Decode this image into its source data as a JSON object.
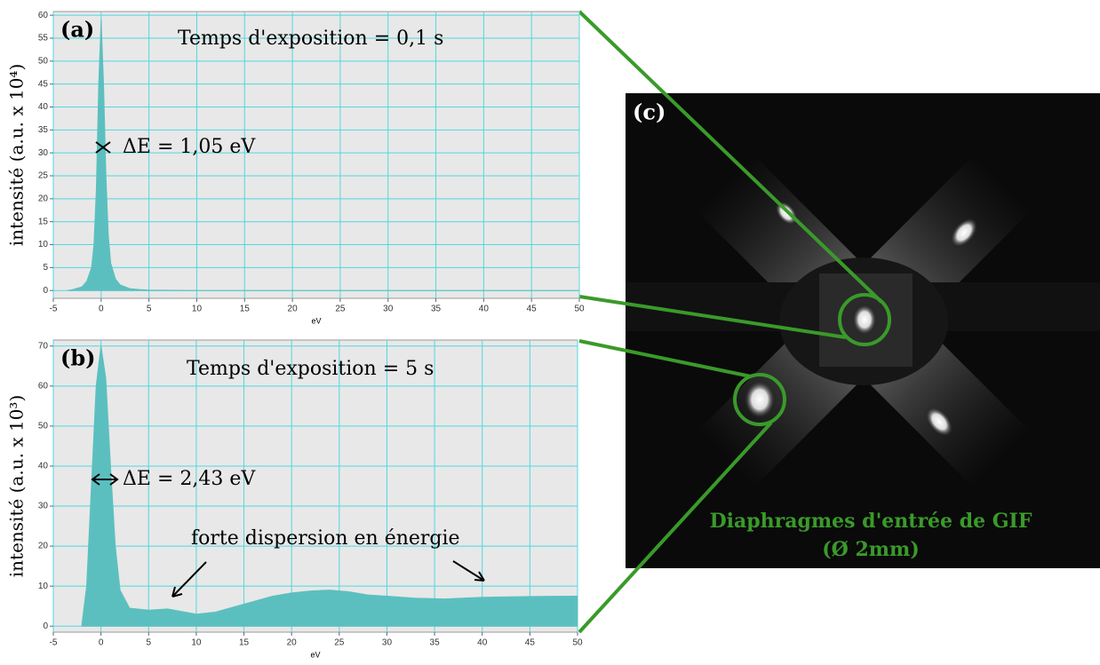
{
  "chart_data": [
    {
      "type": "area",
      "label": "(a)",
      "ylabel": "intensité (a.u. x 10⁴)",
      "xlabel": "eV",
      "annotations": [
        "Temps d'exposition = 0,1 s",
        "ΔE = 1,05 eV"
      ],
      "color": "#5cbfbf",
      "grid": true,
      "xlim": [
        -5,
        50
      ],
      "xticks": [
        -5,
        0,
        5,
        10,
        15,
        20,
        25,
        30,
        35,
        40,
        45,
        50
      ],
      "ylim": [
        -1.7,
        60.8
      ],
      "yticks": [
        0,
        5,
        10,
        15,
        20,
        25,
        30,
        35,
        40,
        45,
        50,
        55,
        60
      ],
      "x": [
        -3.5,
        -3,
        -2,
        -1.5,
        -1,
        -0.75,
        -0.5,
        -0.25,
        0,
        0.25,
        0.5,
        0.75,
        1,
        1.5,
        2,
        3,
        4,
        5,
        10,
        20,
        30,
        40,
        50
      ],
      "values": [
        0,
        0.2,
        0.8,
        2,
        5,
        10,
        22,
        45,
        59,
        45,
        25,
        12,
        6,
        2.5,
        1.2,
        0.4,
        0.2,
        0.1,
        0,
        0,
        0,
        0,
        0
      ]
    },
    {
      "type": "area",
      "label": "(b)",
      "ylabel": "intensité (a.u. x 10³)",
      "xlabel": "eV",
      "annotations": [
        "Temps d'exposition = 5 s",
        "ΔE = 2,43 eV",
        "forte dispersion en énergie"
      ],
      "color": "#5cbfbf",
      "grid": true,
      "xlim": [
        -5,
        50
      ],
      "xticks": [
        -5,
        0,
        5,
        10,
        15,
        20,
        25,
        30,
        35,
        40,
        45,
        50
      ],
      "ylim": [
        -1.5,
        71.5
      ],
      "yticks": [
        0,
        10,
        20,
        30,
        40,
        50,
        60,
        70
      ],
      "x": [
        -2,
        -1.5,
        -1,
        -0.5,
        0,
        0.5,
        1,
        1.5,
        2,
        3,
        5,
        7,
        10,
        12,
        15,
        18,
        20,
        22,
        24,
        26,
        28,
        30,
        33,
        36,
        40,
        45,
        50
      ],
      "values": [
        0.5,
        10,
        35,
        60,
        70,
        62,
        40,
        20,
        9,
        4.5,
        4,
        4.3,
        3,
        3.5,
        5.5,
        7.5,
        8.3,
        8.8,
        9,
        8.6,
        7.8,
        7.5,
        7,
        6.8,
        7.2,
        7.4,
        7.5
      ]
    }
  ],
  "image_panel": {
    "label": "(c)",
    "caption": [
      "Diaphragmes d'entrée de GIF",
      "(Ø 2mm)"
    ]
  }
}
